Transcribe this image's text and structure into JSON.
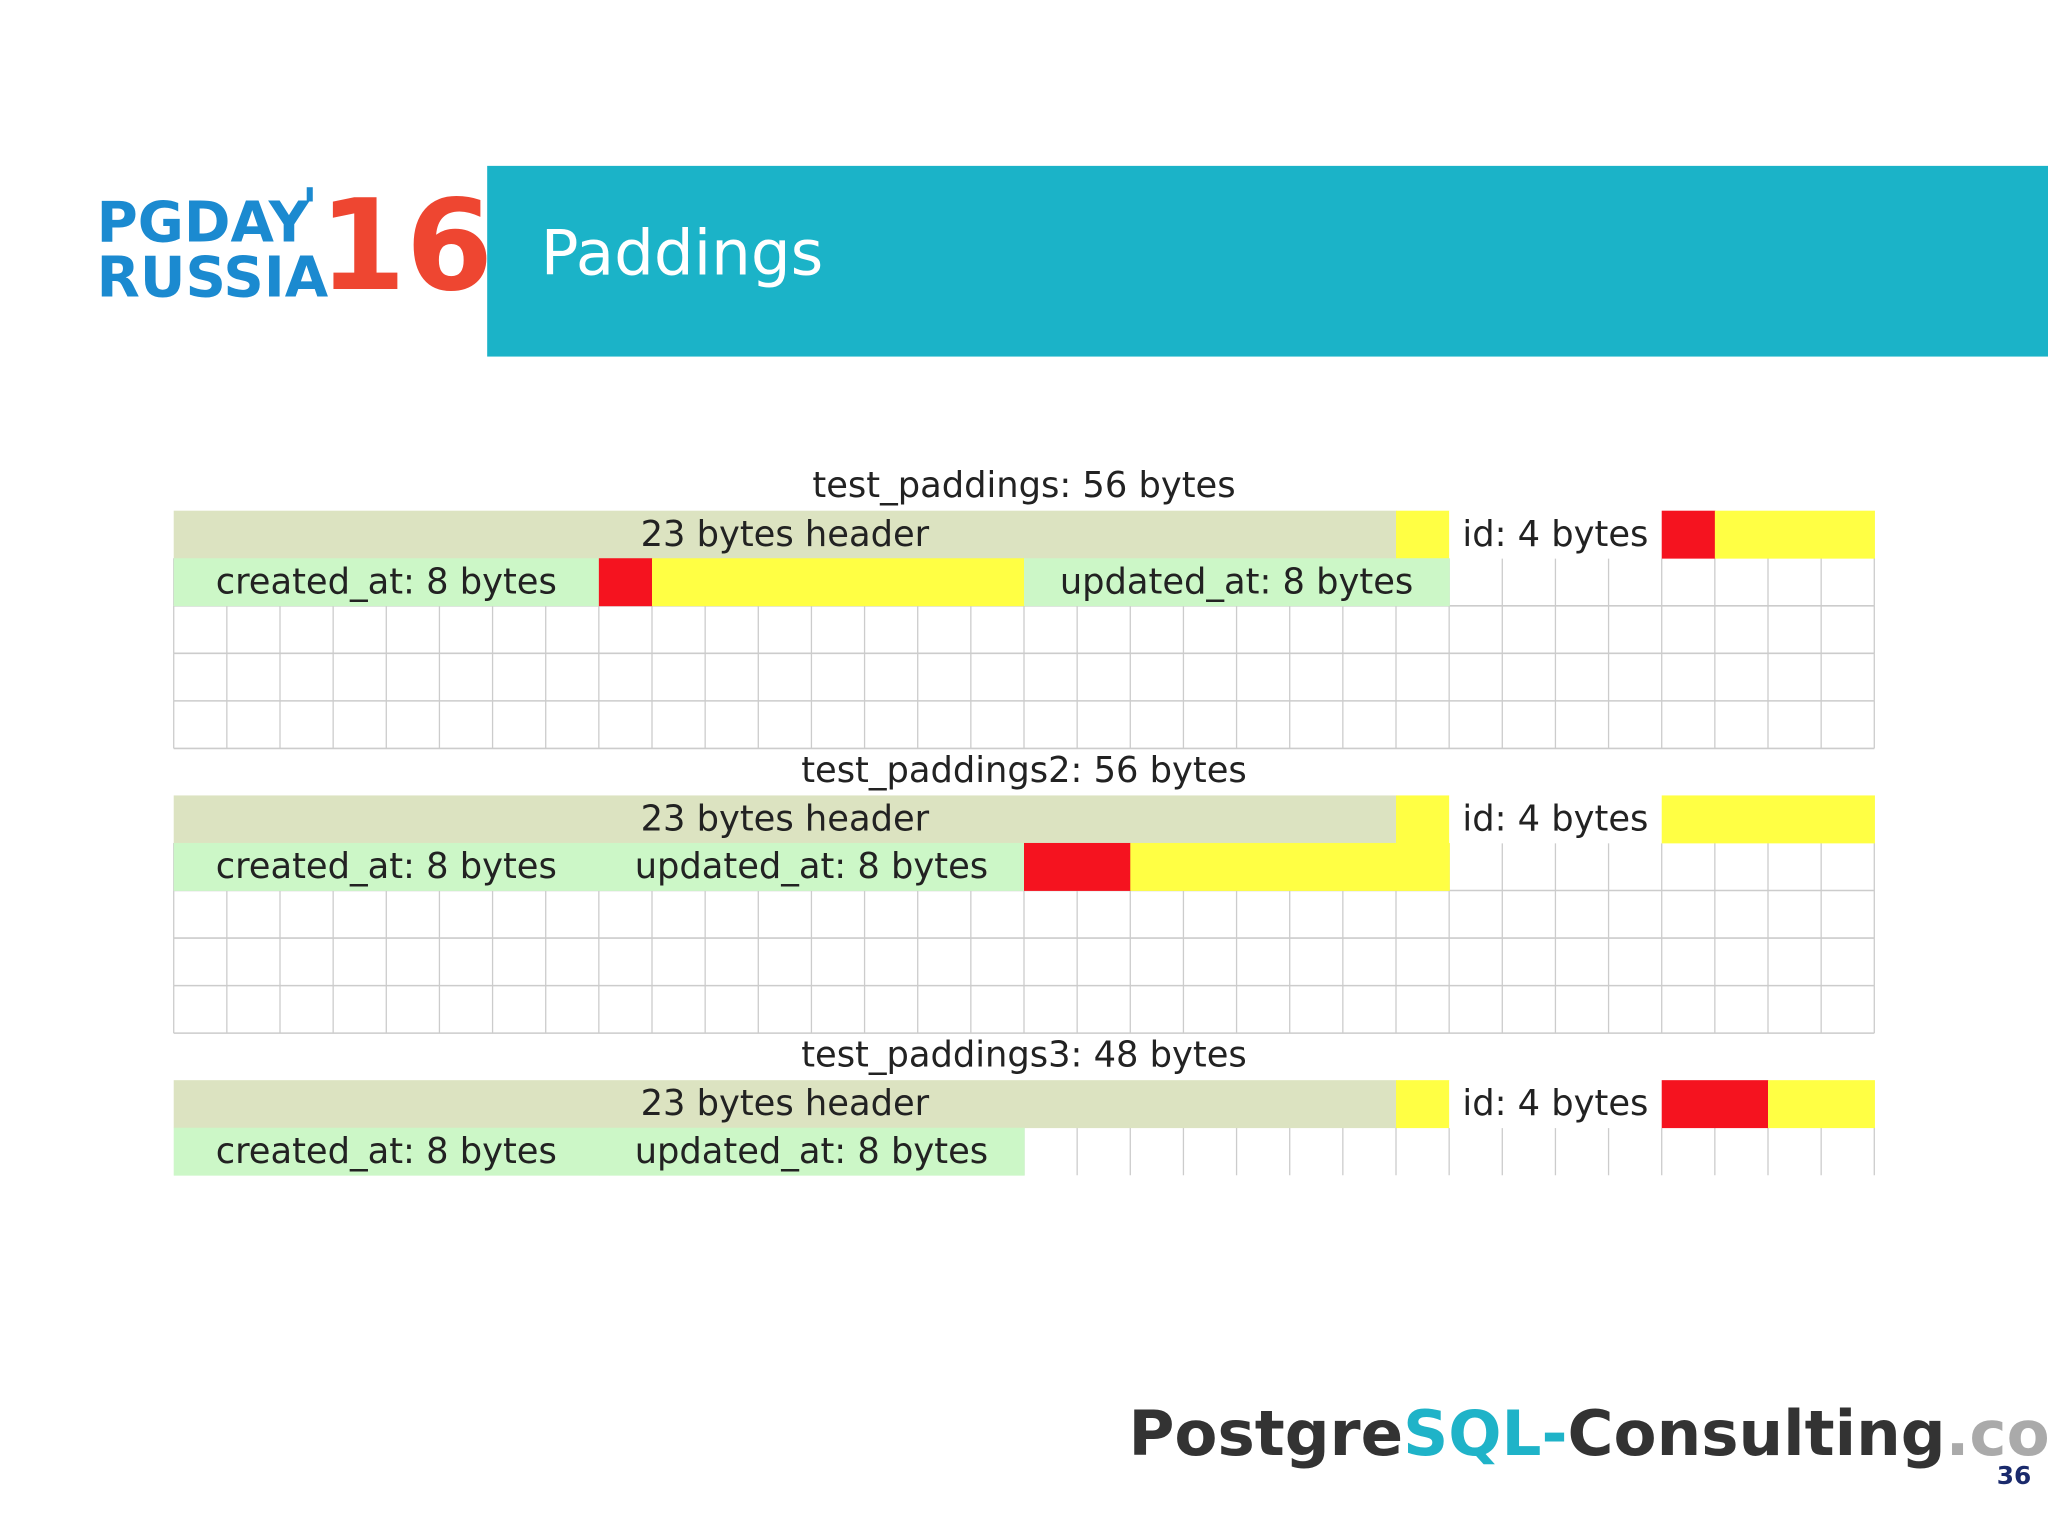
{
  "logo": {
    "line1": "PGDAY",
    "apostrophe": "'",
    "year": "16",
    "line2": "RUSSIA"
  },
  "header": {
    "title": "Paddings"
  },
  "diagrams": [
    {
      "title": "test_paddings: 56 bytes",
      "header": "23 bytes header",
      "id": "id: 4 bytes",
      "created_at": "created_at: 8 bytes",
      "updated_at": "updated_at: 8 bytes"
    },
    {
      "title": "test_paddings2: 56 bytes",
      "header": "23 bytes header",
      "id": "id: 4 bytes",
      "created_at": "created_at: 8 bytes",
      "updated_at": "updated_at: 8 bytes"
    },
    {
      "title": "test_paddings3: 48 bytes",
      "header": "23 bytes header",
      "id": "id: 4 bytes",
      "created_at": "created_at: 8 bytes",
      "updated_at": "updated_at: 8 bytes"
    }
  ],
  "footer": {
    "brand": [
      "Postgre",
      "SQL",
      "-",
      "Consulting",
      ".com"
    ],
    "page": "36"
  }
}
